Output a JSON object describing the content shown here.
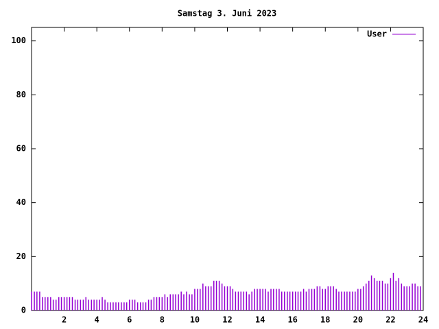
{
  "chart_data": {
    "type": "impulses",
    "title": "Samstag 3. Juni 2023",
    "x": [
      0,
      0.17,
      0.33,
      0.5,
      0.67,
      0.83,
      1,
      1.17,
      1.33,
      1.5,
      1.67,
      1.83,
      2,
      2.17,
      2.33,
      2.5,
      2.67,
      2.83,
      3,
      3.17,
      3.33,
      3.5,
      3.67,
      3.83,
      4,
      4.17,
      4.33,
      4.5,
      4.67,
      4.83,
      5,
      5.17,
      5.33,
      5.5,
      5.67,
      5.83,
      6,
      6.17,
      6.33,
      6.5,
      6.67,
      6.83,
      7,
      7.17,
      7.33,
      7.5,
      7.67,
      7.83,
      8,
      8.17,
      8.33,
      8.5,
      8.67,
      8.83,
      9,
      9.17,
      9.33,
      9.5,
      9.67,
      9.83,
      10,
      10.17,
      10.33,
      10.5,
      10.67,
      10.83,
      11,
      11.17,
      11.33,
      11.5,
      11.67,
      11.83,
      12,
      12.17,
      12.33,
      12.5,
      12.67,
      12.83,
      13,
      13.17,
      13.33,
      13.5,
      13.67,
      13.83,
      14,
      14.17,
      14.33,
      14.5,
      14.67,
      14.83,
      15,
      15.17,
      15.33,
      15.5,
      15.67,
      15.83,
      16,
      16.17,
      16.33,
      16.5,
      16.67,
      16.83,
      17,
      17.17,
      17.33,
      17.5,
      17.67,
      17.83,
      18,
      18.17,
      18.33,
      18.5,
      18.67,
      18.83,
      19,
      19.17,
      19.33,
      19.5,
      19.67,
      19.83,
      20,
      20.17,
      20.33,
      20.5,
      20.67,
      20.83,
      21,
      21.17,
      21.33,
      21.5,
      21.67,
      21.83,
      22,
      22.17,
      22.33,
      22.5,
      22.67,
      22.83,
      23,
      23.17,
      23.33,
      23.5,
      23.67,
      23.83
    ],
    "series": [
      {
        "name": "User",
        "color": "#9400d3",
        "values": [
          7,
          7,
          7,
          7,
          5,
          5,
          5,
          5,
          4,
          4,
          5,
          5,
          5,
          5,
          5,
          5,
          4,
          4,
          4,
          4,
          5,
          4,
          4,
          4,
          4,
          4,
          5,
          4,
          3,
          3,
          3,
          3,
          3,
          3,
          3,
          3,
          4,
          4,
          4,
          3,
          3,
          3,
          3,
          4,
          4,
          5,
          5,
          5,
          5,
          6,
          5,
          6,
          6,
          6,
          6,
          7,
          6,
          7,
          6,
          6,
          8,
          8,
          8,
          10,
          9,
          9,
          9,
          11,
          11,
          11,
          10,
          9,
          9,
          9,
          8,
          7,
          7,
          7,
          7,
          7,
          6,
          7,
          8,
          8,
          8,
          8,
          8,
          7,
          8,
          8,
          8,
          8,
          7,
          7,
          7,
          7,
          7,
          7,
          7,
          7,
          8,
          7,
          8,
          8,
          8,
          9,
          9,
          8,
          8,
          9,
          9,
          9,
          8,
          7,
          7,
          7,
          7,
          7,
          7,
          7,
          8,
          8,
          9,
          10,
          11,
          13,
          12,
          11,
          11,
          11,
          10,
          10,
          12,
          14,
          11,
          12,
          10,
          9,
          9,
          9,
          10,
          10,
          9,
          9
        ]
      }
    ],
    "xlim": [
      0,
      24
    ],
    "xticks": [
      2,
      4,
      6,
      8,
      10,
      12,
      14,
      16,
      18,
      20,
      22,
      24
    ],
    "ylim": [
      0,
      105
    ],
    "yticks": [
      0,
      20,
      40,
      60,
      80,
      100
    ],
    "legend": "top-right"
  }
}
